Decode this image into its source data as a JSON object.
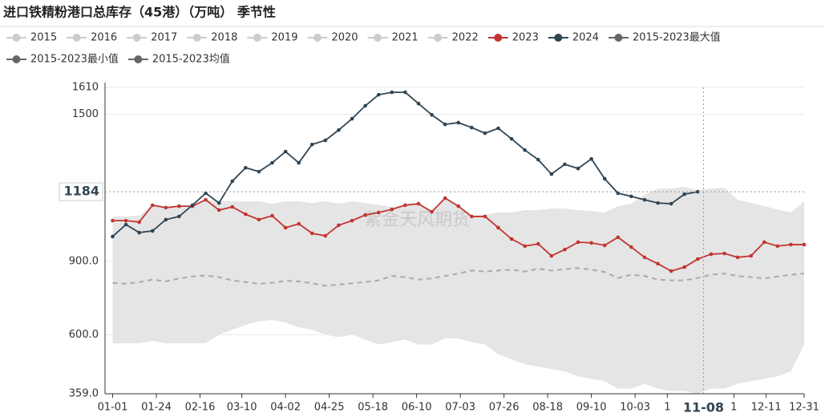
{
  "chart_data": {
    "type": "line",
    "title": "进口铁精粉港口总库存（45港）（万吨） 季节性",
    "watermark": "紫金天风期货",
    "x": [
      0,
      7,
      14,
      21,
      28,
      35,
      42,
      49,
      56,
      63,
      70,
      77,
      84,
      91,
      98,
      105,
      112,
      119,
      126,
      133,
      140,
      147,
      154,
      161,
      168,
      175,
      182,
      189,
      196,
      203,
      210,
      217,
      224,
      231,
      238,
      245,
      252,
      259,
      266,
      273,
      280,
      287,
      294,
      301,
      308,
      315,
      322,
      329,
      336,
      343,
      350,
      357,
      364
    ],
    "xlim": [
      -4,
      364
    ],
    "xticks": [
      {
        "value": 0,
        "label": "01-01"
      },
      {
        "value": 23,
        "label": "01-24"
      },
      {
        "value": 46,
        "label": "02-16"
      },
      {
        "value": 68,
        "label": "03-10"
      },
      {
        "value": 91,
        "label": "04-02"
      },
      {
        "value": 114,
        "label": "04-25"
      },
      {
        "value": 137,
        "label": "05-18"
      },
      {
        "value": 160,
        "label": "06-10"
      },
      {
        "value": 183,
        "label": "07-03"
      },
      {
        "value": 206,
        "label": "07-26"
      },
      {
        "value": 229,
        "label": "08-18"
      },
      {
        "value": 252,
        "label": "09-10"
      },
      {
        "value": 275,
        "label": "10-03"
      },
      {
        "value": 292,
        "label": "1"
      },
      {
        "value": 327,
        "label": "1"
      },
      {
        "value": 344,
        "label": "12-11"
      },
      {
        "value": 364,
        "label": "12-31"
      }
    ],
    "ylim": [
      359,
      1610
    ],
    "yticks": [
      {
        "value": 359,
        "label": "359.0"
      },
      {
        "value": 600,
        "label": "600.0"
      },
      {
        "value": 900,
        "label": "900.0"
      },
      1500,
      1610
    ],
    "grid": true,
    "pointer": {
      "x": {
        "value": 311,
        "label": "11-08"
      },
      "y": 1184
    },
    "series": [
      {
        "name": "2015",
        "color": "#cccccc",
        "hidden": true
      },
      {
        "name": "2016",
        "color": "#cccccc",
        "hidden": true
      },
      {
        "name": "2017",
        "color": "#cccccc",
        "hidden": true
      },
      {
        "name": "2018",
        "color": "#cccccc",
        "hidden": true
      },
      {
        "name": "2019",
        "color": "#cccccc",
        "hidden": true
      },
      {
        "name": "2020",
        "color": "#cccccc",
        "hidden": true
      },
      {
        "name": "2021",
        "color": "#cccccc",
        "hidden": true
      },
      {
        "name": "2022",
        "color": "#cccccc",
        "hidden": true
      },
      {
        "name": "2023",
        "color": "#c23531",
        "values": [
          1066,
          1066,
          1060,
          1129,
          1119,
          1125,
          1125,
          1151,
          1109,
          1122,
          1092,
          1070,
          1086,
          1037,
          1053,
          1014,
          1004,
          1047,
          1066,
          1089,
          1099,
          1112,
          1129,
          1135,
          1102,
          1158,
          1125,
          1083,
          1083,
          1037,
          991,
          962,
          971,
          922,
          948,
          978,
          975,
          965,
          998,
          958,
          916,
          890,
          860,
          876,
          909,
          929,
          932,
          916,
          922,
          978,
          962,
          968,
          968
        ]
      },
      {
        "name": "2024",
        "color": "#2f4554",
        "values": [
          1001,
          1050,
          1017,
          1024,
          1070,
          1083,
          1129,
          1178,
          1138,
          1227,
          1282,
          1266,
          1302,
          1348,
          1302,
          1377,
          1394,
          1436,
          1482,
          1535,
          1580,
          1590,
          1590,
          1544,
          1498,
          1459,
          1466,
          1446,
          1423,
          1443,
          1400,
          1354,
          1315,
          1256,
          1296,
          1279,
          1318,
          1237,
          1178,
          1165,
          1151,
          1138,
          1135,
          1174,
          1184,
          null,
          null,
          null,
          null,
          null,
          null,
          null,
          null
        ]
      },
      {
        "name": "2015-2023最大值",
        "color": "#666666",
        "band": "upper",
        "fill": "#e5e5e5",
        "values": [
          1083,
          1083,
          1086,
          1129,
          1119,
          1125,
          1125,
          1151,
          1145,
          1145,
          1145,
          1145,
          1135,
          1145,
          1145,
          1138,
          1145,
          1135,
          1145,
          1138,
          1130,
          1122,
          1130,
          1135,
          1102,
          1158,
          1125,
          1083,
          1090,
          1099,
          1099,
          1109,
          1109,
          1115,
          1115,
          1109,
          1105,
          1099,
          1125,
          1135,
          1171,
          1197,
          1197,
          1204,
          1190,
          1197,
          1200,
          1151,
          1138,
          1125,
          1112,
          1099,
          1145
        ]
      },
      {
        "name": "2015-2023最小值",
        "color": "#666666",
        "band": "lower",
        "fill": "#e5e5e5",
        "values": [
          565,
          565,
          565,
          575,
          565,
          565,
          565,
          565,
          600,
          620,
          640,
          655,
          660,
          650,
          630,
          620,
          600,
          590,
          600,
          580,
          560,
          570,
          580,
          560,
          560,
          585,
          585,
          570,
          560,
          520,
          500,
          480,
          470,
          460,
          450,
          430,
          420,
          410,
          380,
          380,
          400,
          380,
          370,
          370,
          359,
          380,
          380,
          400,
          410,
          420,
          430,
          450,
          560
        ]
      },
      {
        "name": "2015-2023均值",
        "color": "#666666",
        "line_color": "#aaaaaa",
        "dashed": true,
        "values": [
          812,
          808,
          815,
          825,
          818,
          830,
          838,
          842,
          835,
          822,
          815,
          808,
          812,
          820,
          818,
          810,
          800,
          805,
          810,
          815,
          822,
          840,
          835,
          825,
          830,
          840,
          850,
          862,
          858,
          862,
          866,
          858,
          870,
          862,
          868,
          872,
          866,
          856,
          832,
          845,
          840,
          825,
          822,
          822,
          832,
          845,
          850,
          840,
          835,
          830,
          838,
          845,
          850
        ]
      }
    ]
  }
}
